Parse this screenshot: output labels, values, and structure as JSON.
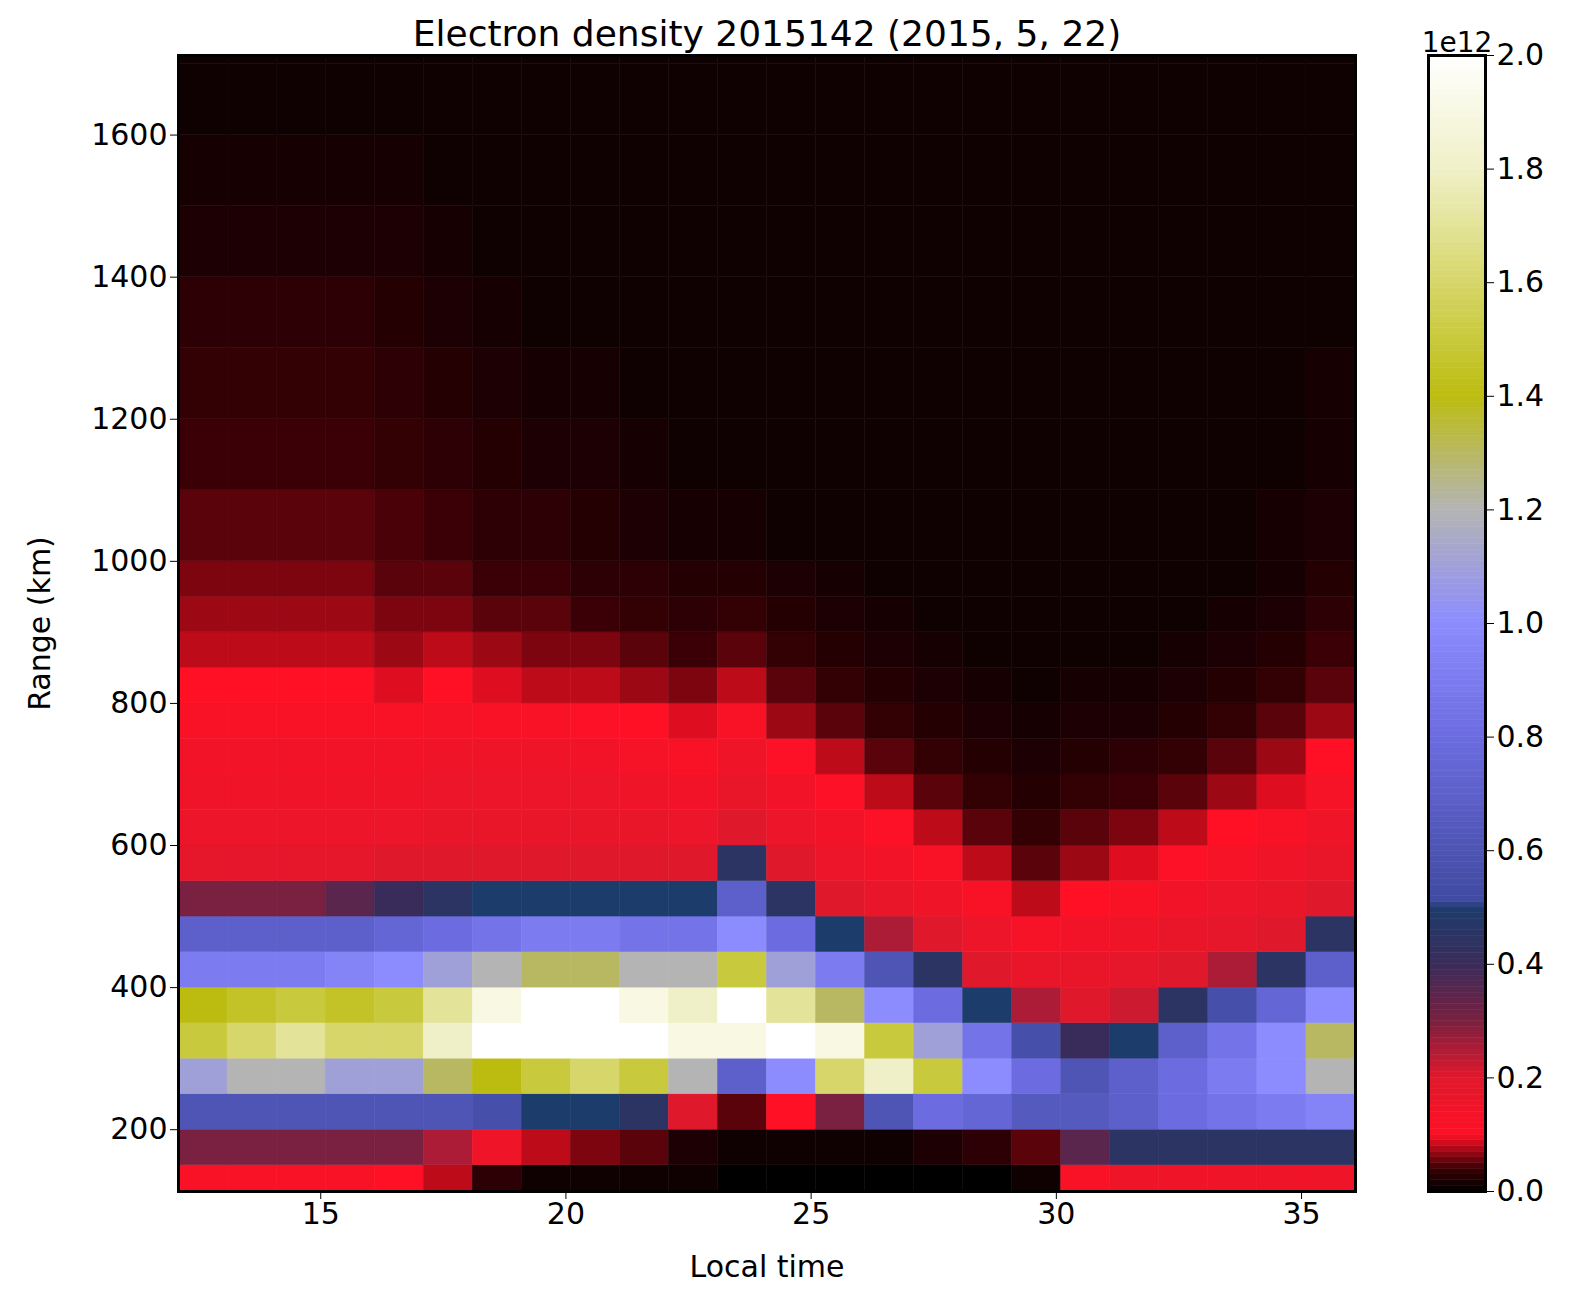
{
  "chart_data": {
    "type": "heatmap",
    "title": "Electron density 2015142 (2015, 5, 22)",
    "x_label": "Local time",
    "y_label": "Range (km)",
    "xlim": [
      12.1,
      36.1
    ],
    "xticks": [
      15,
      20,
      25,
      30,
      35
    ],
    "ylim": [
      113,
      1712
    ],
    "yticks": [
      200,
      400,
      600,
      800,
      1000,
      1200,
      1400,
      1600
    ],
    "x_edges": [
      12.1,
      13.1,
      14.1,
      15.1,
      16.1,
      17.1,
      18.1,
      19.1,
      20.1,
      21.1,
      22.1,
      23.1,
      24.1,
      25.1,
      26.1,
      27.1,
      28.1,
      29.1,
      30.1,
      31.1,
      32.1,
      33.1,
      34.1,
      35.1,
      36.1
    ],
    "y_edges": [
      100,
      150,
      200,
      250,
      300,
      350,
      400,
      450,
      500,
      550,
      600,
      650,
      700,
      750,
      800,
      850,
      900,
      950,
      1000,
      1100,
      1200,
      1300,
      1400,
      1500,
      1600,
      1700,
      1800
    ],
    "values": [
      [
        0.12,
        0.3,
        0.6,
        1.1,
        1.5,
        1.4,
        0.9,
        0.7,
        0.3,
        0.18,
        0.16,
        0.15,
        0.14,
        0.12,
        0.1,
        0.08,
        0.07,
        0.06,
        0.05,
        0.04,
        0.035,
        0.03,
        0.02,
        0.015,
        0.01,
        0.01
      ],
      [
        0.12,
        0.3,
        0.6,
        1.2,
        1.6,
        1.45,
        0.9,
        0.7,
        0.3,
        0.18,
        0.16,
        0.15,
        0.14,
        0.12,
        0.1,
        0.08,
        0.07,
        0.06,
        0.05,
        0.04,
        0.035,
        0.03,
        0.02,
        0.015,
        0.01,
        0.01
      ],
      [
        0.12,
        0.3,
        0.6,
        1.2,
        1.7,
        1.5,
        0.9,
        0.7,
        0.3,
        0.18,
        0.16,
        0.15,
        0.14,
        0.12,
        0.1,
        0.08,
        0.07,
        0.06,
        0.05,
        0.04,
        0.035,
        0.03,
        0.02,
        0.015,
        0.01,
        0.01
      ],
      [
        0.12,
        0.3,
        0.6,
        1.1,
        1.6,
        1.45,
        0.95,
        0.7,
        0.35,
        0.18,
        0.16,
        0.15,
        0.14,
        0.12,
        0.1,
        0.08,
        0.07,
        0.06,
        0.05,
        0.04,
        0.035,
        0.03,
        0.02,
        0.015,
        0.01,
        0.01
      ],
      [
        0.1,
        0.3,
        0.6,
        1.1,
        1.6,
        1.5,
        1.0,
        0.75,
        0.4,
        0.2,
        0.16,
        0.15,
        0.14,
        0.12,
        0.09,
        0.07,
        0.06,
        0.05,
        0.045,
        0.035,
        0.03,
        0.025,
        0.02,
        0.015,
        0.01,
        0.01
      ],
      [
        0.08,
        0.25,
        0.6,
        1.3,
        1.8,
        1.7,
        1.1,
        0.8,
        0.45,
        0.2,
        0.17,
        0.16,
        0.15,
        0.13,
        0.1,
        0.08,
        0.06,
        0.05,
        0.04,
        0.03,
        0.025,
        0.02,
        0.015,
        0.01,
        0.01,
        0.01
      ],
      [
        0.03,
        0.15,
        0.55,
        1.4,
        2.0,
        1.9,
        1.2,
        0.85,
        0.5,
        0.2,
        0.17,
        0.16,
        0.15,
        0.12,
        0.09,
        0.07,
        0.05,
        0.04,
        0.03,
        0.025,
        0.02,
        0.015,
        0.01,
        0.01,
        0.01,
        0.01
      ],
      [
        0.01,
        0.08,
        0.5,
        1.5,
        2.0,
        2.0,
        1.3,
        0.9,
        0.5,
        0.2,
        0.17,
        0.16,
        0.15,
        0.12,
        0.08,
        0.06,
        0.05,
        0.04,
        0.03,
        0.02,
        0.015,
        0.01,
        0.01,
        0.01,
        0.01,
        0.01
      ],
      [
        0.01,
        0.06,
        0.5,
        1.6,
        2.0,
        2.0,
        1.3,
        0.9,
        0.5,
        0.2,
        0.17,
        0.16,
        0.14,
        0.11,
        0.08,
        0.06,
        0.04,
        0.03,
        0.025,
        0.02,
        0.015,
        0.01,
        0.01,
        0.01,
        0.01,
        0.01
      ],
      [
        0.01,
        0.05,
        0.45,
        1.5,
        2.0,
        1.9,
        1.2,
        0.85,
        0.5,
        0.2,
        0.17,
        0.15,
        0.13,
        0.1,
        0.07,
        0.05,
        0.035,
        0.03,
        0.02,
        0.015,
        0.01,
        0.01,
        0.01,
        0.01,
        0.01,
        0.01
      ],
      [
        0.01,
        0.02,
        0.2,
        1.2,
        1.9,
        1.8,
        1.2,
        0.85,
        0.5,
        0.2,
        0.16,
        0.14,
        0.12,
        0.09,
        0.06,
        0.04,
        0.03,
        0.025,
        0.015,
        0.01,
        0.01,
        0.01,
        0.01,
        0.01,
        0.01,
        0.01
      ],
      [
        0.0,
        0.01,
        0.05,
        0.7,
        1.9,
        2.0,
        1.5,
        1.0,
        0.7,
        0.45,
        0.2,
        0.17,
        0.15,
        0.12,
        0.08,
        0.05,
        0.035,
        0.025,
        0.015,
        0.01,
        0.01,
        0.01,
        0.01,
        0.01,
        0.01,
        0.01
      ],
      [
        0.0,
        0.01,
        0.1,
        1.0,
        2.0,
        1.7,
        1.1,
        0.8,
        0.45,
        0.2,
        0.16,
        0.14,
        0.11,
        0.07,
        0.05,
        0.035,
        0.025,
        0.02,
        0.01,
        0.01,
        0.01,
        0.01,
        0.01,
        0.01,
        0.01,
        0.01
      ],
      [
        0.0,
        0.01,
        0.3,
        1.6,
        1.9,
        1.3,
        0.9,
        0.5,
        0.2,
        0.16,
        0.14,
        0.11,
        0.08,
        0.05,
        0.035,
        0.025,
        0.02,
        0.015,
        0.01,
        0.01,
        0.01,
        0.01,
        0.01,
        0.01,
        0.01,
        0.01
      ],
      [
        0.0,
        0.01,
        0.6,
        1.8,
        1.5,
        1.0,
        0.6,
        0.25,
        0.17,
        0.14,
        0.11,
        0.08,
        0.05,
        0.035,
        0.025,
        0.02,
        0.015,
        0.01,
        0.01,
        0.01,
        0.01,
        0.01,
        0.01,
        0.01,
        0.01,
        0.01
      ],
      [
        0.0,
        0.02,
        0.8,
        1.5,
        1.1,
        0.8,
        0.45,
        0.2,
        0.15,
        0.12,
        0.08,
        0.05,
        0.035,
        0.025,
        0.02,
        0.015,
        0.01,
        0.01,
        0.01,
        0.01,
        0.01,
        0.01,
        0.01,
        0.01,
        0.01,
        0.01
      ],
      [
        0.0,
        0.03,
        0.75,
        1.0,
        0.85,
        0.5,
        0.2,
        0.16,
        0.12,
        0.08,
        0.05,
        0.035,
        0.025,
        0.02,
        0.015,
        0.01,
        0.01,
        0.01,
        0.01,
        0.01,
        0.01,
        0.01,
        0.01,
        0.01,
        0.01,
        0.01
      ],
      [
        0.01,
        0.05,
        0.65,
        0.8,
        0.55,
        0.25,
        0.17,
        0.13,
        0.08,
        0.05,
        0.035,
        0.025,
        0.02,
        0.015,
        0.01,
        0.01,
        0.01,
        0.01,
        0.01,
        0.01,
        0.01,
        0.01,
        0.01,
        0.01,
        0.01,
        0.01
      ],
      [
        0.12,
        0.35,
        0.65,
        0.6,
        0.4,
        0.2,
        0.17,
        0.14,
        0.1,
        0.07,
        0.05,
        0.035,
        0.025,
        0.02,
        0.015,
        0.01,
        0.01,
        0.01,
        0.01,
        0.01,
        0.01,
        0.01,
        0.01,
        0.01,
        0.01,
        0.01
      ],
      [
        0.15,
        0.45,
        0.7,
        0.7,
        0.5,
        0.22,
        0.18,
        0.15,
        0.12,
        0.09,
        0.06,
        0.04,
        0.03,
        0.02,
        0.015,
        0.01,
        0.01,
        0.01,
        0.01,
        0.01,
        0.01,
        0.01,
        0.01,
        0.01,
        0.01,
        0.01
      ],
      [
        0.15,
        0.45,
        0.8,
        0.8,
        0.7,
        0.45,
        0.2,
        0.17,
        0.14,
        0.11,
        0.08,
        0.05,
        0.035,
        0.025,
        0.02,
        0.015,
        0.01,
        0.01,
        0.01,
        0.01,
        0.01,
        0.01,
        0.01,
        0.01,
        0.01,
        0.01
      ],
      [
        0.15,
        0.45,
        0.85,
        0.9,
        0.85,
        0.55,
        0.25,
        0.18,
        0.16,
        0.13,
        0.1,
        0.07,
        0.05,
        0.035,
        0.025,
        0.02,
        0.015,
        0.01,
        0.01,
        0.01,
        0.01,
        0.01,
        0.01,
        0.01,
        0.01,
        0.01
      ],
      [
        0.15,
        0.45,
        0.9,
        1.0,
        1.0,
        0.75,
        0.45,
        0.2,
        0.17,
        0.15,
        0.12,
        0.09,
        0.07,
        0.05,
        0.035,
        0.025,
        0.02,
        0.015,
        0.015,
        0.01,
        0.01,
        0.01,
        0.01,
        0.01,
        0.01,
        0.01
      ],
      [
        0.15,
        0.45,
        0.95,
        1.2,
        1.3,
        1.0,
        0.7,
        0.45,
        0.2,
        0.17,
        0.15,
        0.13,
        0.1,
        0.07,
        0.05,
        0.04,
        0.03,
        0.025,
        0.02,
        0.015,
        0.015,
        0.01,
        0.01,
        0.01,
        0.01,
        0.01
      ]
    ],
    "colorbar_range": [
      0,
      2
    ],
    "colorbar_ticks": [
      {
        "value": 0,
        "label": "0.0"
      },
      {
        "value": 0.2,
        "label": "0.2"
      },
      {
        "value": 0.4,
        "label": "0.4"
      },
      {
        "value": 0.6,
        "label": "0.6"
      },
      {
        "value": 0.8,
        "label": "0.8"
      },
      {
        "value": 1,
        "label": "1.0"
      },
      {
        "value": 1.2,
        "label": "1.2"
      },
      {
        "value": 1.4,
        "label": "1.4"
      },
      {
        "value": 1.6,
        "label": "1.6"
      },
      {
        "value": 1.8,
        "label": "1.8"
      },
      {
        "value": 2,
        "label": "2.0"
      }
    ],
    "colorbar_offset_text": "1e12"
  }
}
